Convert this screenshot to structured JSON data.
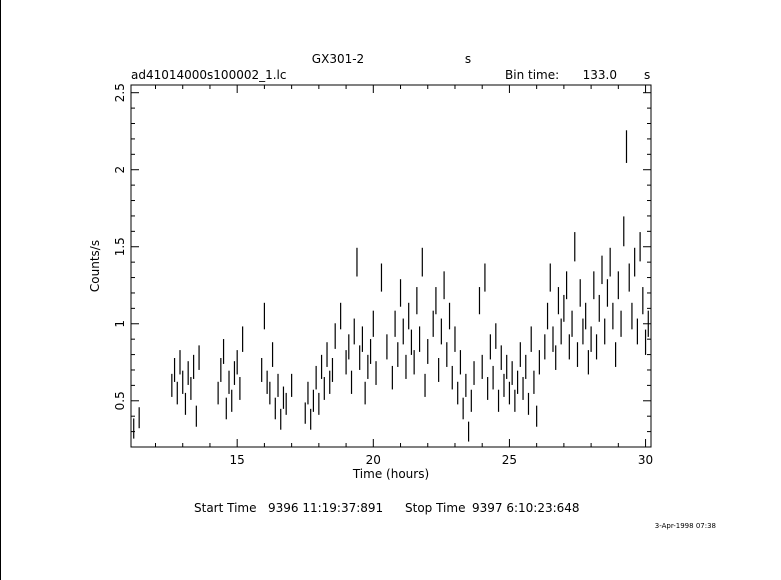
{
  "chart_data": {
    "type": "scatter",
    "title": "GX301-2",
    "title_suffix": "s",
    "filename": "ad41014000s100002_1.lc",
    "bin_time_label": "Bin time:",
    "bin_time_value": "133.0",
    "bin_time_unit": "s",
    "xlabel": "Time (hours)",
    "ylabel": "Counts/s",
    "xlim": [
      11.1,
      30.2
    ],
    "ylim": [
      0.2,
      2.55
    ],
    "x_ticks": [
      "15",
      "20",
      "25",
      "30"
    ],
    "y_ticks": [
      "0.5",
      "1",
      "1.5",
      "2",
      "2.5"
    ],
    "start_label": "Start Time",
    "start_value": "9396 11:19:37:891",
    "stop_label": "Stop Time",
    "stop_value": "9397  6:10:23:648",
    "footer_date": "3-Apr-1998 07:38",
    "grid": false,
    "legend": "none",
    "series": [
      {
        "points": [
          [
            11.2,
            0.32
          ],
          [
            11.4,
            0.39
          ],
          [
            12.6,
            0.6
          ],
          [
            12.7,
            0.7
          ],
          [
            12.8,
            0.55
          ],
          [
            12.9,
            0.75
          ],
          [
            13.0,
            0.62
          ],
          [
            13.1,
            0.48
          ],
          [
            13.2,
            0.68
          ],
          [
            13.3,
            0.58
          ],
          [
            13.4,
            0.72
          ],
          [
            13.5,
            0.4
          ],
          [
            13.6,
            0.78
          ],
          [
            14.3,
            0.55
          ],
          [
            14.4,
            0.7
          ],
          [
            14.5,
            0.82
          ],
          [
            14.6,
            0.45
          ],
          [
            14.7,
            0.62
          ],
          [
            14.8,
            0.5
          ],
          [
            14.9,
            0.68
          ],
          [
            15.0,
            0.75
          ],
          [
            15.1,
            0.58
          ],
          [
            15.2,
            0.9
          ],
          [
            15.9,
            0.7
          ],
          [
            16.0,
            1.05
          ],
          [
            16.1,
            0.62
          ],
          [
            16.2,
            0.55
          ],
          [
            16.3,
            0.8
          ],
          [
            16.4,
            0.45
          ],
          [
            16.5,
            0.6
          ],
          [
            16.6,
            0.38
          ],
          [
            16.7,
            0.52
          ],
          [
            16.8,
            0.48
          ],
          [
            17.0,
            0.6
          ],
          [
            17.5,
            0.42
          ],
          [
            17.6,
            0.55
          ],
          [
            17.7,
            0.38
          ],
          [
            17.8,
            0.5
          ],
          [
            17.9,
            0.65
          ],
          [
            18.0,
            0.48
          ],
          [
            18.1,
            0.72
          ],
          [
            18.2,
            0.58
          ],
          [
            18.3,
            0.8
          ],
          [
            18.4,
            0.62
          ],
          [
            18.5,
            0.7
          ],
          [
            18.6,
            0.92
          ],
          [
            18.8,
            1.05
          ],
          [
            19.0,
            0.75
          ],
          [
            19.1,
            0.85
          ],
          [
            19.2,
            0.62
          ],
          [
            19.3,
            0.95
          ],
          [
            19.4,
            1.4
          ],
          [
            19.5,
            0.78
          ],
          [
            19.6,
            0.9
          ],
          [
            19.7,
            0.55
          ],
          [
            19.8,
            0.72
          ],
          [
            19.9,
            0.82
          ],
          [
            20.0,
            1.0
          ],
          [
            20.1,
            0.68
          ],
          [
            20.3,
            1.3
          ],
          [
            20.5,
            0.85
          ],
          [
            20.7,
            0.65
          ],
          [
            20.8,
            1.0
          ],
          [
            20.9,
            0.8
          ],
          [
            21.0,
            1.2
          ],
          [
            21.1,
            0.95
          ],
          [
            21.2,
            0.72
          ],
          [
            21.3,
            1.05
          ],
          [
            21.4,
            0.88
          ],
          [
            21.5,
            0.75
          ],
          [
            21.6,
            1.15
          ],
          [
            21.7,
            0.9
          ],
          [
            21.8,
            1.4
          ],
          [
            21.9,
            0.6
          ],
          [
            22.0,
            0.82
          ],
          [
            22.2,
            1.0
          ],
          [
            22.3,
            1.15
          ],
          [
            22.4,
            0.7
          ],
          [
            22.5,
            0.95
          ],
          [
            22.6,
            1.25
          ],
          [
            22.7,
            0.8
          ],
          [
            22.8,
            1.05
          ],
          [
            22.9,
            0.65
          ],
          [
            23.0,
            0.9
          ],
          [
            23.1,
            0.55
          ],
          [
            23.2,
            0.75
          ],
          [
            23.3,
            0.45
          ],
          [
            23.4,
            0.6
          ],
          [
            23.5,
            0.3
          ],
          [
            23.6,
            0.5
          ],
          [
            23.7,
            0.68
          ],
          [
            23.9,
            1.15
          ],
          [
            24.0,
            0.72
          ],
          [
            24.1,
            1.3
          ],
          [
            24.2,
            0.58
          ],
          [
            24.3,
            0.85
          ],
          [
            24.4,
            0.65
          ],
          [
            24.5,
            0.92
          ],
          [
            24.6,
            0.5
          ],
          [
            24.7,
            0.78
          ],
          [
            24.8,
            0.6
          ],
          [
            24.9,
            0.72
          ],
          [
            25.0,
            0.55
          ],
          [
            25.1,
            0.68
          ],
          [
            25.2,
            0.5
          ],
          [
            25.3,
            0.62
          ],
          [
            25.4,
            0.8
          ],
          [
            25.5,
            0.58
          ],
          [
            25.6,
            0.72
          ],
          [
            25.7,
            0.48
          ],
          [
            25.8,
            0.9
          ],
          [
            25.9,
            0.62
          ],
          [
            26.0,
            0.4
          ],
          [
            26.1,
            0.75
          ],
          [
            26.3,
            0.85
          ],
          [
            26.4,
            1.05
          ],
          [
            26.5,
            1.3
          ],
          [
            26.6,
            0.9
          ],
          [
            26.7,
            0.78
          ],
          [
            26.8,
            1.15
          ],
          [
            26.9,
            0.95
          ],
          [
            27.0,
            1.1
          ],
          [
            27.1,
            1.25
          ],
          [
            27.2,
            0.85
          ],
          [
            27.3,
            1.0
          ],
          [
            27.4,
            1.5
          ],
          [
            27.5,
            0.8
          ],
          [
            27.6,
            1.2
          ],
          [
            27.7,
            0.95
          ],
          [
            27.8,
            1.05
          ],
          [
            27.9,
            0.75
          ],
          [
            28.0,
            0.9
          ],
          [
            28.1,
            1.25
          ],
          [
            28.2,
            0.85
          ],
          [
            28.3,
            1.1
          ],
          [
            28.4,
            1.35
          ],
          [
            28.5,
            0.95
          ],
          [
            28.6,
            1.2
          ],
          [
            28.7,
            1.4
          ],
          [
            28.8,
            1.05
          ],
          [
            28.9,
            0.8
          ],
          [
            29.0,
            1.25
          ],
          [
            29.1,
            1.0
          ],
          [
            29.2,
            1.6
          ],
          [
            29.3,
            2.15
          ],
          [
            29.4,
            1.3
          ],
          [
            29.5,
            1.05
          ],
          [
            29.6,
            1.4
          ],
          [
            29.7,
            0.95
          ],
          [
            29.8,
            1.5
          ],
          [
            29.9,
            1.15
          ],
          [
            30.0,
            0.88
          ],
          [
            30.1,
            1.0
          ]
        ]
      }
    ]
  }
}
